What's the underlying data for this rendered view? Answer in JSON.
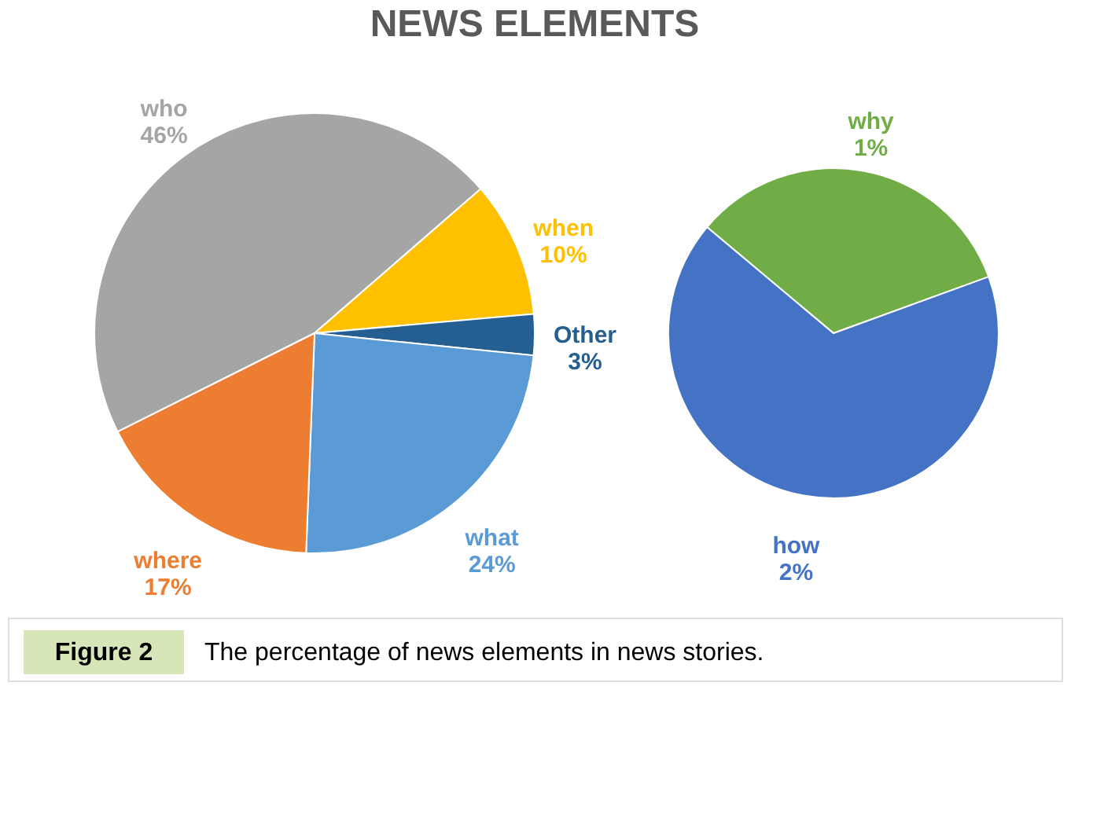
{
  "chart_data": [
    {
      "type": "pie",
      "title": "NEWS ELEMENTS",
      "categories": [
        "who",
        "when",
        "Other",
        "what",
        "where"
      ],
      "values": [
        46,
        10,
        3,
        24,
        17
      ],
      "colors": [
        "#a5a5a5",
        "#ffc000",
        "#255e91",
        "#5b9bd5",
        "#ed7d31"
      ],
      "value_labels": [
        "46%",
        "10%",
        "3%",
        "24%",
        "17%"
      ],
      "annotations": [
        "Figure 2",
        "The percentage of news elements in news stories."
      ]
    },
    {
      "type": "pie",
      "categories": [
        "why",
        "how"
      ],
      "values": [
        1,
        2
      ],
      "colors": [
        "#70ad47",
        "#4472c4"
      ],
      "value_labels": [
        "1%",
        "2%"
      ]
    }
  ]
}
